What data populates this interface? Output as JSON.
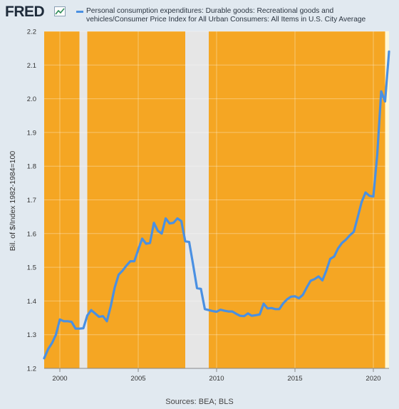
{
  "brand": {
    "logo_text": "FRED",
    "logo_icon": "line-chart-icon"
  },
  "chart_data": {
    "type": "line",
    "title": "Personal consumption expenditures: Durable goods: Recreational goods and vehicles/Consumer Price Index for All Urban Consumers: All Items in U.S. City Average",
    "ylabel": "Bil. of $/Index 1982-1984=100",
    "xlabel": "",
    "ylim": [
      1.2,
      2.2
    ],
    "yticks": [
      "1.2",
      "1.3",
      "1.4",
      "1.5",
      "1.6",
      "1.7",
      "1.8",
      "1.9",
      "2.0",
      "2.1",
      "2.2"
    ],
    "xlim": [
      1999.0,
      2021.0
    ],
    "xticks": [
      {
        "value": 2000,
        "label": "2000"
      },
      {
        "value": 2005,
        "label": "2005"
      },
      {
        "value": 2010,
        "label": "2010"
      },
      {
        "value": 2015,
        "label": "2015"
      },
      {
        "value": 2020,
        "label": "2020"
      }
    ],
    "recessions": [
      [
        2001.25,
        2001.75
      ],
      [
        2008.0,
        2009.5
      ]
    ],
    "series": [
      {
        "name": "Personal consumption expenditures: Durable goods: Recreational goods and vehicles/Consumer Price Index for All Urban Consumers: All Items in U.S. City Average",
        "color": "#4a90e2",
        "points": [
          [
            1999.0,
            1.23
          ],
          [
            1999.25,
            1.257
          ],
          [
            1999.5,
            1.275
          ],
          [
            1999.75,
            1.3
          ],
          [
            2000.0,
            1.345
          ],
          [
            2000.25,
            1.34
          ],
          [
            2000.5,
            1.34
          ],
          [
            2000.75,
            1.338
          ],
          [
            2001.0,
            1.318
          ],
          [
            2001.25,
            1.318
          ],
          [
            2001.5,
            1.319
          ],
          [
            2001.75,
            1.357
          ],
          [
            2002.0,
            1.373
          ],
          [
            2002.25,
            1.363
          ],
          [
            2002.5,
            1.353
          ],
          [
            2002.75,
            1.355
          ],
          [
            2003.0,
            1.34
          ],
          [
            2003.25,
            1.385
          ],
          [
            2003.5,
            1.44
          ],
          [
            2003.75,
            1.478
          ],
          [
            2004.0,
            1.49
          ],
          [
            2004.25,
            1.505
          ],
          [
            2004.5,
            1.518
          ],
          [
            2004.75,
            1.518
          ],
          [
            2005.0,
            1.552
          ],
          [
            2005.25,
            1.585
          ],
          [
            2005.5,
            1.57
          ],
          [
            2005.75,
            1.572
          ],
          [
            2006.0,
            1.632
          ],
          [
            2006.25,
            1.608
          ],
          [
            2006.5,
            1.6
          ],
          [
            2006.75,
            1.645
          ],
          [
            2007.0,
            1.63
          ],
          [
            2007.25,
            1.632
          ],
          [
            2007.5,
            1.645
          ],
          [
            2007.75,
            1.637
          ],
          [
            2008.0,
            1.577
          ],
          [
            2008.25,
            1.575
          ],
          [
            2008.5,
            1.508
          ],
          [
            2008.75,
            1.438
          ],
          [
            2009.0,
            1.436
          ],
          [
            2009.25,
            1.376
          ],
          [
            2009.5,
            1.373
          ],
          [
            2009.75,
            1.37
          ],
          [
            2010.0,
            1.368
          ],
          [
            2010.25,
            1.374
          ],
          [
            2010.5,
            1.371
          ],
          [
            2010.75,
            1.369
          ],
          [
            2011.0,
            1.369
          ],
          [
            2011.25,
            1.362
          ],
          [
            2011.5,
            1.356
          ],
          [
            2011.75,
            1.355
          ],
          [
            2012.0,
            1.363
          ],
          [
            2012.25,
            1.356
          ],
          [
            2012.5,
            1.358
          ],
          [
            2012.75,
            1.36
          ],
          [
            2013.0,
            1.392
          ],
          [
            2013.25,
            1.378
          ],
          [
            2013.5,
            1.379
          ],
          [
            2013.75,
            1.376
          ],
          [
            2014.0,
            1.376
          ],
          [
            2014.25,
            1.393
          ],
          [
            2014.5,
            1.405
          ],
          [
            2014.75,
            1.413
          ],
          [
            2015.0,
            1.414
          ],
          [
            2015.25,
            1.408
          ],
          [
            2015.5,
            1.418
          ],
          [
            2015.75,
            1.44
          ],
          [
            2016.0,
            1.46
          ],
          [
            2016.25,
            1.465
          ],
          [
            2016.5,
            1.473
          ],
          [
            2016.75,
            1.461
          ],
          [
            2017.0,
            1.49
          ],
          [
            2017.25,
            1.525
          ],
          [
            2017.5,
            1.532
          ],
          [
            2017.75,
            1.556
          ],
          [
            2018.0,
            1.572
          ],
          [
            2018.25,
            1.582
          ],
          [
            2018.5,
            1.595
          ],
          [
            2018.75,
            1.605
          ],
          [
            2019.0,
            1.648
          ],
          [
            2019.25,
            1.693
          ],
          [
            2019.5,
            1.722
          ],
          [
            2019.75,
            1.712
          ],
          [
            2020.0,
            1.71
          ],
          [
            2020.25,
            1.835
          ],
          [
            2020.5,
            2.022
          ],
          [
            2020.75,
            1.992
          ],
          [
            2021.0,
            2.14
          ]
        ]
      }
    ],
    "grid": true,
    "legend_placement": "top-left"
  },
  "footer": {
    "sources": "Sources: BEA; BLS"
  }
}
